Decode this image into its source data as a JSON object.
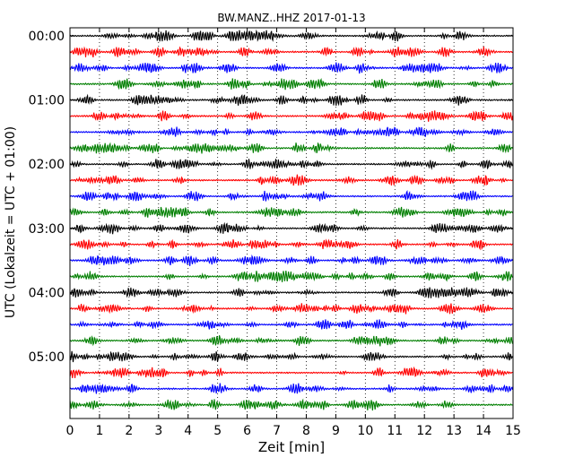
{
  "chart_data": {
    "type": "line",
    "title": "BW.MANZ..HHZ 2017-01-13",
    "xlabel": "Zeit  [min]",
    "ylabel": "UTC (Lokalzeit = UTC + 01:00)",
    "xlim": [
      0,
      15
    ],
    "x_ticks": [
      "0",
      "1",
      "2",
      "3",
      "4",
      "5",
      "6",
      "7",
      "8",
      "9",
      "10",
      "11",
      "12",
      "13",
      "14",
      "15"
    ],
    "y_tick_labels": [
      "00:00",
      "01:00",
      "02:00",
      "03:00",
      "04:00",
      "05:00"
    ],
    "rows_per_hour": 4,
    "row_minutes": 15,
    "trace_count": 24,
    "trace_colors": [
      "#000000",
      "#ff0000",
      "#0000ff",
      "#007f00"
    ],
    "grid": "vertical-dotted"
  }
}
